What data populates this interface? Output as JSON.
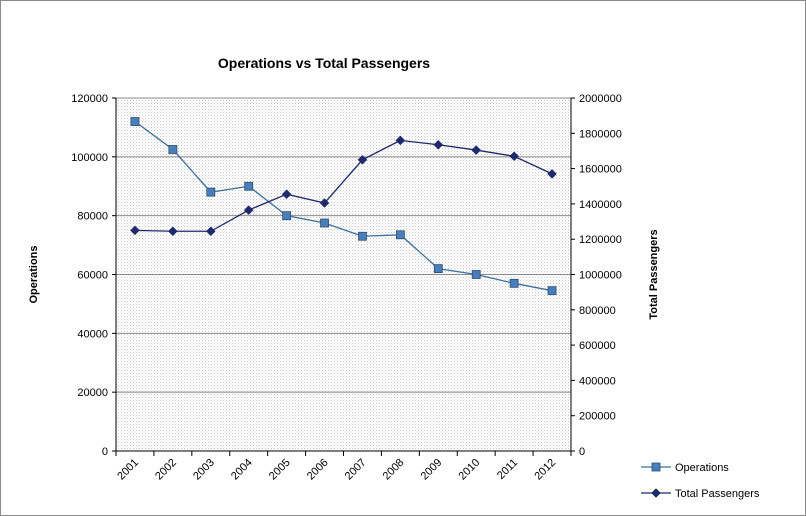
{
  "chart_data": {
    "type": "line",
    "title": "Operations vs Total Passengers",
    "categories": [
      "2001",
      "2002",
      "2003",
      "2004",
      "2005",
      "2006",
      "2007",
      "2008",
      "2009",
      "2010",
      "2011",
      "2012"
    ],
    "y_left": {
      "label": "Operations",
      "lim": [
        0,
        120000
      ],
      "ticks": [
        0,
        20000,
        40000,
        60000,
        80000,
        100000,
        120000
      ]
    },
    "y_right": {
      "label": "Total Passengers",
      "lim": [
        0,
        2000000
      ],
      "ticks": [
        0,
        200000,
        400000,
        600000,
        800000,
        1000000,
        1200000,
        1400000,
        1600000,
        1800000,
        2000000
      ]
    },
    "series": [
      {
        "name": "Operations",
        "axis": "left",
        "marker": "square",
        "color": "#4a7ebb",
        "line_color": "#3d6f9e",
        "values": [
          112000,
          102500,
          88000,
          90000,
          80000,
          77500,
          73000,
          73500,
          62000,
          60000,
          57000,
          54500
        ]
      },
      {
        "name": "Total Passengers",
        "axis": "right",
        "marker": "diamond",
        "color": "#1f2a6b",
        "line_color": "#1f2a6b",
        "values": [
          1250000,
          1245000,
          1245000,
          1365000,
          1455000,
          1405000,
          1650000,
          1760000,
          1735000,
          1705000,
          1670000,
          1570000
        ]
      }
    ],
    "grid": true,
    "legend_position": "bottom-right"
  }
}
